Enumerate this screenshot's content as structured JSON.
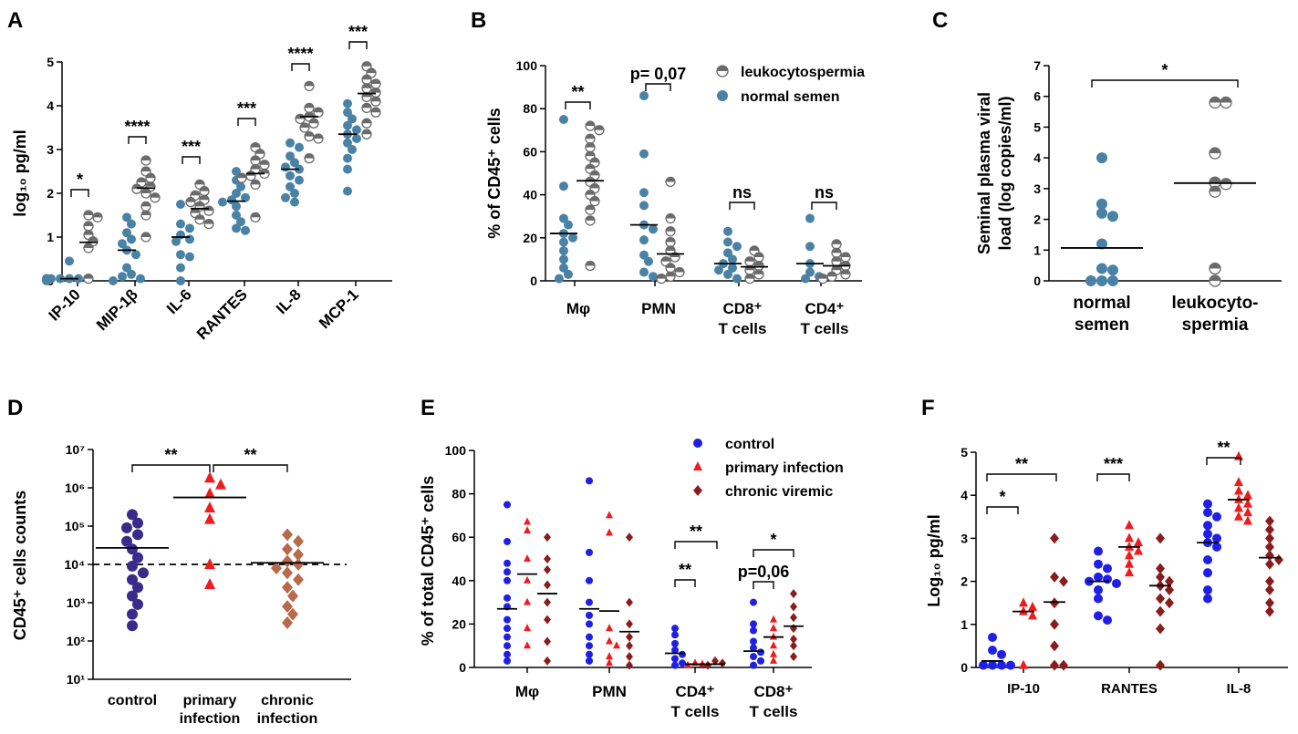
{
  "colors": {
    "teal": "#4a82a6",
    "gray": "#6b6b6b",
    "blue": "#1f1fe6",
    "red": "#ee1c1c",
    "darkred": "#8b1c1c",
    "purple": "#3a2a8c",
    "salmon": "#b86a4a",
    "black": "#000000"
  },
  "chart_data": [
    {
      "panel": "A",
      "type": "scatter",
      "ylabel": "log₁₀ pg/ml",
      "ylim": [
        0,
        5
      ],
      "yticks": [
        "0",
        "1",
        "2",
        "3",
        "4",
        "5"
      ],
      "categories": [
        "IP-10",
        "MIP-1β",
        "IL-6",
        "RANTES",
        "IL-8",
        "MCP-1"
      ],
      "series": [
        {
          "marker": "teal-circle",
          "medians": [
            0.05,
            0.7,
            1.0,
            1.82,
            2.55,
            3.35
          ],
          "points": [
            [
              0,
              0.45,
              0.05,
              0.05,
              0.05,
              0.05,
              0.05,
              0.05,
              0.05,
              0.05
            ],
            [
              0.15,
              1.45,
              1.3,
              1.1,
              0.95,
              0.85,
              0.7,
              0.6,
              0.3,
              0.1,
              0.05,
              0.0
            ],
            [
              1.75,
              1.3,
              1.2,
              1.05,
              0.95,
              0.9,
              0.6,
              0.55,
              0.3,
              0.0
            ],
            [
              2.5,
              2.3,
              2.15,
              2.0,
              1.9,
              1.85,
              1.8,
              1.7,
              1.5,
              1.35,
              1.2,
              1.15
            ],
            [
              3.15,
              3.05,
              2.85,
              2.7,
              2.6,
              2.55,
              2.4,
              2.3,
              2.15,
              2.0,
              1.9,
              1.8
            ],
            [
              4.05,
              3.85,
              3.7,
              3.55,
              3.45,
              3.35,
              3.25,
              3.15,
              3.0,
              2.8,
              2.55,
              2.05
            ]
          ]
        },
        {
          "marker": "half-circle",
          "medians": [
            0.88,
            2.12,
            1.65,
            2.45,
            3.75,
            4.28
          ],
          "points": [
            [
              1.5,
              1.45,
              1.25,
              1.05,
              0.9,
              0.75,
              0.05
            ],
            [
              2.75,
              2.5,
              2.35,
              2.25,
              2.15,
              2.1,
              2.0,
              1.9,
              1.7,
              1.5,
              1.0
            ],
            [
              2.2,
              2.05,
              1.95,
              1.85,
              1.8,
              1.7,
              1.6,
              1.55,
              1.4,
              1.3
            ],
            [
              3.05,
              2.9,
              2.75,
              2.65,
              2.55,
              2.45,
              2.4,
              2.35,
              2.2,
              1.45
            ],
            [
              4.45,
              3.95,
              3.85,
              3.75,
              3.7,
              3.6,
              3.5,
              3.3,
              3.25,
              2.8
            ],
            [
              4.9,
              4.75,
              4.6,
              4.5,
              4.4,
              4.3,
              4.2,
              4.1,
              3.95,
              3.85,
              3.6,
              3.35
            ]
          ]
        }
      ],
      "annotations": [
        "*",
        "****",
        "***",
        "***",
        "****",
        "***"
      ]
    },
    {
      "panel": "B",
      "type": "scatter",
      "ylabel": "% of CD45⁺ cells",
      "ylim": [
        0,
        100
      ],
      "yticks": [
        "0",
        "20",
        "40",
        "60",
        "80",
        "100"
      ],
      "categories": [
        "Mφ",
        "PMN",
        "CD8⁺ T cells",
        "CD4⁺ T cells"
      ],
      "legend": [
        {
          "marker": "half-circle",
          "label": "leukocytospermia"
        },
        {
          "marker": "teal-circle",
          "label": "normal semen"
        }
      ],
      "series": [
        {
          "name": "normal semen",
          "marker": "teal-circle",
          "medians": [
            22,
            26,
            8,
            8
          ],
          "points": [
            [
              75,
              44,
              29,
              26,
              22,
              20,
              18,
              14,
              10,
              6,
              3,
              1
            ],
            [
              86,
              59,
              41,
              35,
              26,
              24,
              19,
              12,
              9,
              4,
              2
            ],
            [
              23,
              18,
              16,
              13,
              10,
              8,
              6,
              5,
              3,
              1
            ],
            [
              29,
              16,
              8,
              4,
              2,
              1
            ]
          ]
        },
        {
          "name": "leukocytospermia",
          "marker": "half-circle",
          "medians": [
            46.5,
            12.5,
            6.5,
            7
          ],
          "points": [
            [
              72,
              70,
              66,
              62,
              58,
              55,
              52,
              49,
              46,
              43,
              40,
              37,
              33,
              28,
              7
            ],
            [
              46,
              29,
              23,
              18,
              14,
              11,
              9,
              6,
              4,
              2,
              1
            ],
            [
              14,
              11,
              9,
              7,
              5,
              3,
              1
            ],
            [
              17,
              13,
              11,
              9,
              7,
              5,
              3,
              2,
              1
            ]
          ]
        }
      ],
      "annotations": [
        "**",
        "p= 0,07",
        "ns",
        "ns"
      ]
    },
    {
      "panel": "C",
      "type": "scatter",
      "ylabel": "Seminal plasma viral load (log copies/ml)",
      "ylim": [
        0,
        7
      ],
      "yticks": [
        "0",
        "1",
        "2",
        "3",
        "4",
        "5",
        "6",
        "7"
      ],
      "categories": [
        "normal semen",
        "leukocyto- spermia"
      ],
      "series": [
        {
          "marker": "teal-circle",
          "median": 1.07,
          "points": [
            4.0,
            2.5,
            2.2,
            2.1,
            1.2,
            0.4,
            0.35,
            0.0,
            0.0,
            0.0
          ]
        },
        {
          "marker": "half-circle",
          "median": 3.18,
          "points": [
            5.8,
            5.8,
            4.15,
            3.2,
            3.15,
            2.9,
            0.4,
            0.0
          ]
        }
      ],
      "annotations": [
        "*"
      ]
    },
    {
      "panel": "D",
      "type": "scatter",
      "ylabel": "CD45⁺ cells counts",
      "yscale": "log",
      "ylim": [
        10,
        10000000
      ],
      "yticks": [
        "10¹",
        "10²",
        "10³",
        "10⁴",
        "10⁵",
        "10⁶",
        "10⁷"
      ],
      "categories": [
        "control",
        "primary infection",
        "chronic infection"
      ],
      "reference_line": 10000,
      "series": [
        {
          "marker": "purple-circle",
          "median": 27000,
          "points": [
            200000,
            120000,
            90000,
            60000,
            40000,
            25000,
            15000,
            9000,
            6000,
            4000,
            2500,
            1500,
            900,
            500,
            250
          ]
        },
        {
          "marker": "red-triangle",
          "median": 560000,
          "points": [
            1800000,
            1200000,
            700000,
            300000,
            150000,
            10000,
            3000
          ]
        },
        {
          "marker": "salmon-diamond",
          "median": 11000,
          "points": [
            60000,
            40000,
            25000,
            18000,
            12000,
            10000,
            8000,
            6000,
            4000,
            2500,
            1500,
            800,
            500,
            300
          ]
        }
      ],
      "annotations": [
        "**",
        "**"
      ]
    },
    {
      "panel": "E",
      "type": "scatter",
      "ylabel": "% of total CD45⁺ cells",
      "ylim": [
        0,
        100
      ],
      "yticks": [
        "0",
        "20",
        "40",
        "60",
        "80",
        "100"
      ],
      "categories": [
        "Mφ",
        "PMN",
        "CD4⁺ T cells",
        "CD8⁺ T cells"
      ],
      "legend": [
        {
          "marker": "blue-circle",
          "label": "control"
        },
        {
          "marker": "red-triangle",
          "label": "primary infection"
        },
        {
          "marker": "darkred-diamond",
          "label": "chronic viremic"
        }
      ],
      "series": [
        {
          "name": "control",
          "marker": "blue-circle",
          "medians": [
            27,
            27,
            6.5,
            7.5
          ],
          "points": [
            [
              75,
              58,
              48,
              44,
              40,
              32,
              28,
              22,
              18,
              14,
              10,
              6,
              3
            ],
            [
              86,
              53,
              40,
              30,
              24,
              20,
              14,
              10,
              6,
              3
            ],
            [
              18,
              15,
              11,
              8,
              6,
              4,
              2,
              1
            ],
            [
              30,
              20,
              17,
              12,
              9,
              7,
              5,
              3,
              1
            ]
          ]
        },
        {
          "name": "primary infection",
          "marker": "red-triangle",
          "medians": [
            43,
            26,
            1.5,
            14
          ],
          "points": [
            [
              67,
              63,
              50,
              40,
              30,
              18,
              10
            ],
            [
              70,
              62,
              18,
              12,
              10,
              5,
              2
            ],
            [
              2,
              1.5,
              1
            ],
            [
              22,
              18,
              14,
              10,
              6,
              3
            ]
          ]
        },
        {
          "name": "chronic viremic",
          "marker": "darkred-diamond",
          "medians": [
            34,
            16.5,
            1.5,
            19
          ],
          "points": [
            [
              60,
              50,
              45,
              38,
              30,
              22,
              12,
              3
            ],
            [
              60,
              30,
              20,
              14,
              10,
              5,
              1
            ],
            [
              3,
              2,
              1
            ],
            [
              34,
              28,
              23,
              18,
              13,
              10,
              5
            ]
          ]
        }
      ],
      "annotations": [
        "**",
        "**",
        "p=0,06",
        "*"
      ]
    },
    {
      "panel": "F",
      "type": "scatter",
      "ylabel": "Log₁₀ pg/ml",
      "ylim": [
        0,
        5
      ],
      "yticks": [
        "0",
        "1",
        "2",
        "3",
        "4",
        "5"
      ],
      "categories": [
        "IP-10",
        "RANTES",
        "IL-8"
      ],
      "series": [
        {
          "marker": "blue-circle",
          "medians": [
            0.15,
            2.0,
            2.9
          ],
          "points": [
            [
              0.7,
              0.4,
              0.3,
              0.05,
              0.05,
              0.05,
              0.05
            ],
            [
              2.7,
              2.4,
              2.3,
              2.1,
              2.05,
              2.0,
              1.95,
              1.8,
              1.6,
              1.2,
              1.1
            ],
            [
              3.8,
              3.6,
              3.5,
              3.3,
              3.1,
              3.0,
              2.9,
              2.8,
              2.5,
              2.2,
              1.8,
              1.6
            ]
          ]
        },
        {
          "marker": "red-triangle",
          "medians": [
            1.3,
            2.8,
            3.9
          ],
          "points": [
            [
              1.5,
              1.4,
              1.3,
              1.2,
              0.05
            ],
            [
              3.3,
              3.0,
              2.9,
              2.8,
              2.7,
              2.6,
              2.4,
              2.2
            ],
            [
              4.9,
              4.3,
              4.1,
              4.0,
              3.9,
              3.8,
              3.7,
              3.6,
              3.5,
              3.4
            ]
          ]
        },
        {
          "marker": "darkred-diamond",
          "medians": [
            1.52,
            1.9,
            2.55
          ],
          "points": [
            [
              3.0,
              2.1,
              2.0,
              1.5,
              1.0,
              0.5,
              0.05,
              0.05
            ],
            [
              3.0,
              2.3,
              2.1,
              2.0,
              1.9,
              1.8,
              1.6,
              1.5,
              1.3,
              0.9,
              0.05
            ],
            [
              3.4,
              3.2,
              3.0,
              2.8,
              2.6,
              2.5,
              2.4,
              2.0,
              1.8,
              1.5,
              1.3
            ]
          ]
        }
      ],
      "annotations": [
        "**",
        "*",
        "***",
        "**"
      ]
    }
  ]
}
